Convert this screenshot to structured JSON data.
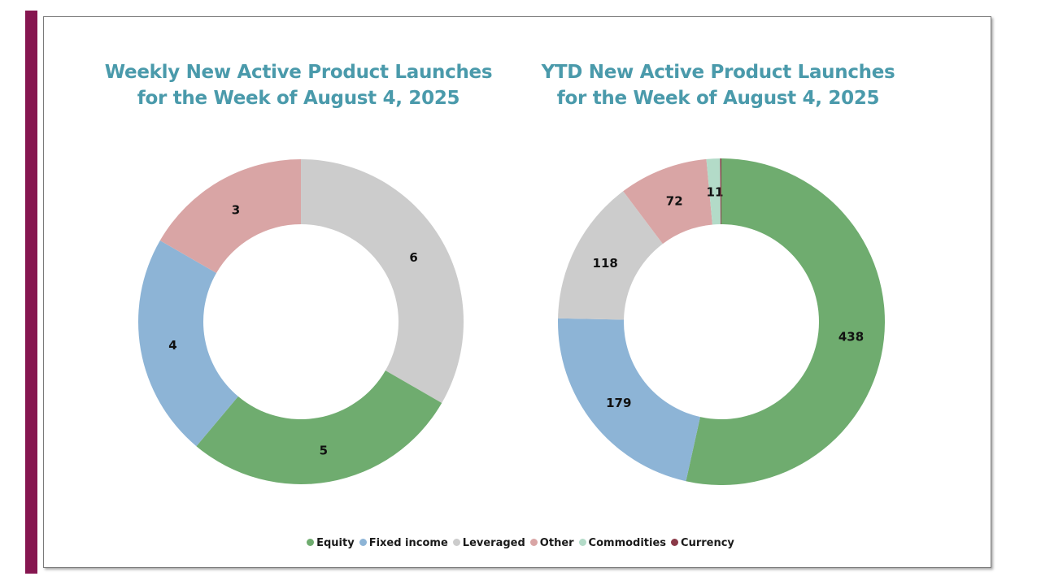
{
  "chart_data": [
    {
      "type": "donut",
      "title": "Weekly New Active Product Launches\nfor the Week of August 4, 2025",
      "title_lines": [
        "Weekly New Active Product Launches",
        "for the Week of August 4, 2025"
      ],
      "slices": [
        {
          "category": "Leveraged",
          "value": 6,
          "label": "6",
          "color": "#cccccc"
        },
        {
          "category": "Equity",
          "value": 5,
          "label": "5",
          "color": "#6fac6f"
        },
        {
          "category": "Fixed income",
          "value": 4,
          "label": "4",
          "color": "#8db4d6"
        },
        {
          "category": "Other",
          "value": 3,
          "label": "3",
          "color": "#d9a5a5"
        }
      ]
    },
    {
      "type": "donut",
      "title": "YTD New Active Product Launches\nfor the Week of August 4, 2025",
      "title_lines": [
        "YTD New Active Product Launches",
        "for the Week of August 4, 2025"
      ],
      "slices": [
        {
          "category": "Equity",
          "value": 438,
          "label": "438",
          "color": "#6fac6f"
        },
        {
          "category": "Fixed income",
          "value": 179,
          "label": "179",
          "color": "#8db4d6"
        },
        {
          "category": "Leveraged",
          "value": 118,
          "label": "118",
          "color": "#cccccc"
        },
        {
          "category": "Other",
          "value": 72,
          "label": "72",
          "color": "#d9a5a5"
        },
        {
          "category": "Commodities",
          "value": 11,
          "label": "11",
          "color": "#b3dbc8"
        },
        {
          "category": "Currency",
          "value": 1,
          "label": "",
          "color": "#8b3a48"
        }
      ]
    }
  ],
  "legend": {
    "placement": "bottom",
    "items": [
      {
        "label": "Equity",
        "color": "#6fac6f"
      },
      {
        "label": "Fixed income",
        "color": "#8db4d6"
      },
      {
        "label": "Leveraged",
        "color": "#cccccc"
      },
      {
        "label": "Other",
        "color": "#d9a5a5"
      },
      {
        "label": "Commodities",
        "color": "#b3dbc8"
      },
      {
        "label": "Currency",
        "color": "#8b3a48"
      }
    ]
  },
  "colors": {
    "accent_bar": "#861650",
    "title": "#4a9aab"
  }
}
